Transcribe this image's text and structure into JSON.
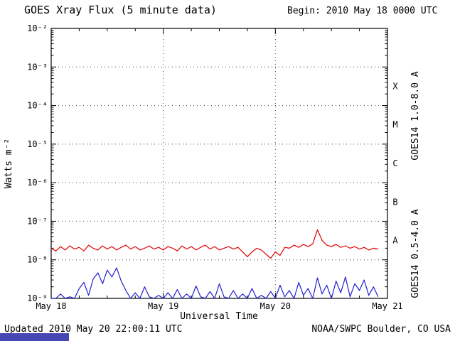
{
  "page": {
    "begin_label": "Begin: 2010 May 18 0000 UTC",
    "updated_label": "Updated 2010 May 20 22:00:11 UTC",
    "credit_label": "NOAA/SWPC Boulder, CO USA",
    "artifact_bar_color": "#4646b4",
    "background_color": "#ffffff"
  },
  "chart_data": {
    "type": "line",
    "title": "GOES Xray Flux (5 minute data)",
    "xlabel": "Universal Time",
    "ylabel": "Watts m⁻²",
    "legend_position": "right-rotated",
    "grid": {
      "h_exps": [
        -3,
        -4,
        -5,
        -6,
        -7,
        -8
      ],
      "v_days": [
        1,
        2
      ]
    },
    "x_axis": {
      "unit": "days since 2010 May 18 0000 UTC",
      "range": [
        0,
        3
      ],
      "minor_tick_days": 0.25,
      "ticks": [
        {
          "day": 0,
          "label": "May 18"
        },
        {
          "day": 1,
          "label": "May 19"
        },
        {
          "day": 2,
          "label": "May 20"
        },
        {
          "day": 3,
          "label": "May 21"
        }
      ]
    },
    "y_axis": {
      "scale": "log",
      "range_exp": [
        -9,
        -2
      ],
      "ticks": [
        {
          "exp": -2,
          "label": "10⁻²"
        },
        {
          "exp": -3,
          "label": "10⁻³"
        },
        {
          "exp": -4,
          "label": "10⁻⁴"
        },
        {
          "exp": -5,
          "label": "10⁻⁵"
        },
        {
          "exp": -6,
          "label": "10⁻⁶"
        },
        {
          "exp": -7,
          "label": "10⁻⁷"
        },
        {
          "exp": -8,
          "label": "10⁻⁸"
        },
        {
          "exp": -9,
          "label": "10⁻⁹"
        }
      ]
    },
    "flare_classes": [
      {
        "label": "X",
        "log_center": -3.5
      },
      {
        "label": "M",
        "log_center": -4.5
      },
      {
        "label": "C",
        "log_center": -5.5
      },
      {
        "label": "B",
        "log_center": -6.5
      },
      {
        "label": "A",
        "log_center": -7.5
      }
    ],
    "x_hours": [
      0,
      1,
      2,
      3,
      4,
      5,
      6,
      7,
      8,
      9,
      10,
      11,
      12,
      13,
      14,
      15,
      16,
      17,
      18,
      19,
      20,
      21,
      22,
      23,
      24,
      25,
      26,
      27,
      28,
      29,
      30,
      31,
      32,
      33,
      34,
      35,
      36,
      37,
      38,
      39,
      40,
      41,
      42,
      43,
      44,
      45,
      46,
      47,
      48,
      49,
      50,
      51,
      52,
      53,
      54,
      55,
      56,
      57,
      58,
      59,
      60,
      61,
      62,
      63,
      64,
      65,
      66,
      67,
      68,
      69,
      70
    ],
    "series": [
      {
        "name": "GOES14 1.0-8.0 A",
        "color": "#e00000",
        "flux": [
          2e-08,
          1.7e-08,
          2.2e-08,
          1.8e-08,
          2.3e-08,
          1.9e-08,
          2.1e-08,
          1.7e-08,
          2.4e-08,
          2e-08,
          1.8e-08,
          2.3e-08,
          1.9e-08,
          2.2e-08,
          1.8e-08,
          2.1e-08,
          2.4e-08,
          1.9e-08,
          2.2e-08,
          1.8e-08,
          2e-08,
          2.3e-08,
          1.9e-08,
          2.1e-08,
          1.8e-08,
          2.2e-08,
          2e-08,
          1.7e-08,
          2.3e-08,
          1.9e-08,
          2.2e-08,
          1.8e-08,
          2.1e-08,
          2.4e-08,
          1.9e-08,
          2.2e-08,
          1.8e-08,
          2e-08,
          2.2e-08,
          1.9e-08,
          2.1e-08,
          1.6e-08,
          1.2e-08,
          1.6e-08,
          2e-08,
          1.8e-08,
          1.4e-08,
          1.1e-08,
          1.6e-08,
          1.3e-08,
          2.1e-08,
          2e-08,
          2.4e-08,
          2.1e-08,
          2.5e-08,
          2.2e-08,
          2.6e-08,
          6e-08,
          3.2e-08,
          2.4e-08,
          2.2e-08,
          2.5e-08,
          2.1e-08,
          2.3e-08,
          2e-08,
          2.2e-08,
          1.9e-08,
          2.1e-08,
          1.8e-08,
          2e-08,
          1.9e-08
        ]
      },
      {
        "name": "GOES14 0.5-4.0 A",
        "color": "#2020d0",
        "flux": [
          1e-09,
          9e-10,
          1.3e-09,
          9e-10,
          1.1e-09,
          9e-10,
          1.8e-09,
          2.6e-09,
          1.2e-09,
          3.2e-09,
          4.6e-09,
          2.4e-09,
          5.4e-09,
          3.6e-09,
          6.2e-09,
          2.8e-09,
          1.6e-09,
          1e-09,
          1.4e-09,
          9e-10,
          2e-09,
          1.1e-09,
          9e-10,
          1.2e-09,
          9e-10,
          1.4e-09,
          1e-09,
          1.7e-09,
          9e-10,
          1.3e-09,
          1e-09,
          2.1e-09,
          1.1e-09,
          9e-10,
          1.5e-09,
          1e-09,
          2.4e-09,
          1.1e-09,
          9e-10,
          1.6e-09,
          1e-09,
          1.3e-09,
          9e-10,
          1.8e-09,
          1e-09,
          1.2e-09,
          9e-10,
          1.5e-09,
          1e-09,
          2.2e-09,
          1.1e-09,
          1.6e-09,
          9e-10,
          2.6e-09,
          1.2e-09,
          1.8e-09,
          1e-09,
          3.4e-09,
          1.3e-09,
          2.2e-09,
          1e-09,
          2.8e-09,
          1.4e-09,
          3.6e-09,
          1.1e-09,
          2.4e-09,
          1.6e-09,
          3e-09,
          1.2e-09,
          2e-09,
          1.1e-09
        ]
      }
    ]
  }
}
